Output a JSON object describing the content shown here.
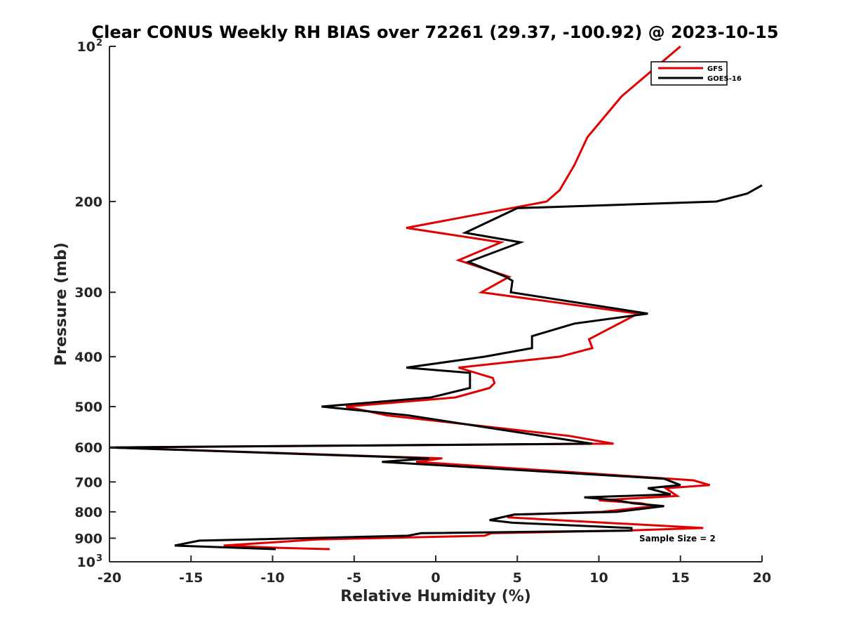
{
  "chart_data": {
    "type": "line",
    "title": "Clear CONUS Weekly RH BIAS over 72261 (29.37, -100.92) @ 2023-10-15",
    "xlabel": "Relative Humidity (%)",
    "ylabel": "Pressure (mb)",
    "xlim": [
      -20,
      20
    ],
    "ylim": [
      100,
      1000
    ],
    "yscale": "log",
    "y_reversed": true,
    "grid": false,
    "legend_position": "top-right",
    "x_ticks": [
      -20,
      -15,
      -10,
      -5,
      0,
      5,
      10,
      15,
      20
    ],
    "y_ticks": [
      {
        "value": 100,
        "label": "10",
        "exponent": "2"
      },
      {
        "value": 200,
        "label": "200"
      },
      {
        "value": 300,
        "label": "300"
      },
      {
        "value": 400,
        "label": "400"
      },
      {
        "value": 500,
        "label": "500"
      },
      {
        "value": 600,
        "label": "600"
      },
      {
        "value": 700,
        "label": "700"
      },
      {
        "value": 800,
        "label": "800"
      },
      {
        "value": 900,
        "label": "900"
      },
      {
        "value": 1000,
        "label": "10",
        "exponent": "3"
      }
    ],
    "annotation": "Sample Size = 2",
    "series": [
      {
        "name": "GFS",
        "color": "#e00000",
        "points": [
          [
            15,
            100
          ],
          [
            11.4,
            125
          ],
          [
            9.3,
            150
          ],
          [
            8.5,
            170
          ],
          [
            7.6,
            190
          ],
          [
            6.8,
            200
          ],
          [
            -1.8,
            225
          ],
          [
            4,
            240
          ],
          [
            1.4,
            260
          ],
          [
            4.5,
            280
          ],
          [
            2.8,
            300
          ],
          [
            12.4,
            330
          ],
          [
            9.4,
            370
          ],
          [
            9.6,
            385
          ],
          [
            7.6,
            400
          ],
          [
            1.4,
            420
          ],
          [
            3.5,
            440
          ],
          [
            3.6,
            450
          ],
          [
            3.3,
            460
          ],
          [
            1.2,
            480
          ],
          [
            -5.5,
            500
          ],
          [
            -3,
            520
          ],
          [
            8.2,
            570
          ],
          [
            10.9,
            590
          ],
          [
            -20,
            600
          ],
          [
            0.4,
            630
          ],
          [
            -1.2,
            640
          ],
          [
            15.8,
            695
          ],
          [
            16.8,
            710
          ],
          [
            14.1,
            720
          ],
          [
            14.8,
            745
          ],
          [
            10,
            760
          ],
          [
            12.6,
            770
          ],
          [
            13.4,
            780
          ],
          [
            10.2,
            800
          ],
          [
            4.8,
            810
          ],
          [
            4.4,
            820
          ],
          [
            7.4,
            830
          ],
          [
            16.4,
            860
          ],
          [
            11.5,
            870
          ],
          [
            3.4,
            880
          ],
          [
            3.0,
            890
          ],
          [
            -7.3,
            905
          ],
          [
            -13,
            930
          ],
          [
            -9.5,
            940
          ],
          [
            -6.5,
            945
          ]
        ]
      },
      {
        "name": "GOES-16",
        "color": "#000000",
        "points": [
          [
            20,
            186
          ],
          [
            19.1,
            193
          ],
          [
            17.2,
            200
          ],
          [
            5,
            206
          ],
          [
            1.8,
            230
          ],
          [
            5.2,
            240
          ],
          [
            2,
            262
          ],
          [
            4.3,
            280
          ],
          [
            4.7,
            285
          ],
          [
            4.6,
            300
          ],
          [
            13,
            330
          ],
          [
            8.5,
            345
          ],
          [
            5.9,
            365
          ],
          [
            5.9,
            385
          ],
          [
            3,
            400
          ],
          [
            -1.8,
            420
          ],
          [
            2.1,
            430
          ],
          [
            2.1,
            450
          ],
          [
            2.1,
            460
          ],
          [
            -0.3,
            480
          ],
          [
            -7,
            500
          ],
          [
            -1.7,
            520
          ],
          [
            9.6,
            590
          ],
          [
            -20,
            600
          ],
          [
            -0.4,
            630
          ],
          [
            -3.3,
            640
          ],
          [
            14,
            690
          ],
          [
            15,
            710
          ],
          [
            13,
            720
          ],
          [
            14.4,
            740
          ],
          [
            9.1,
            750
          ],
          [
            11.1,
            760
          ],
          [
            12.1,
            770
          ],
          [
            14,
            780
          ],
          [
            11.1,
            800
          ],
          [
            4.8,
            810
          ],
          [
            3.3,
            830
          ],
          [
            4.7,
            840
          ],
          [
            12,
            860
          ],
          [
            12,
            870
          ],
          [
            -0.9,
            880
          ],
          [
            -1.7,
            890
          ],
          [
            -14.5,
            910
          ],
          [
            -16,
            930
          ],
          [
            -9.8,
            945
          ]
        ]
      }
    ]
  }
}
